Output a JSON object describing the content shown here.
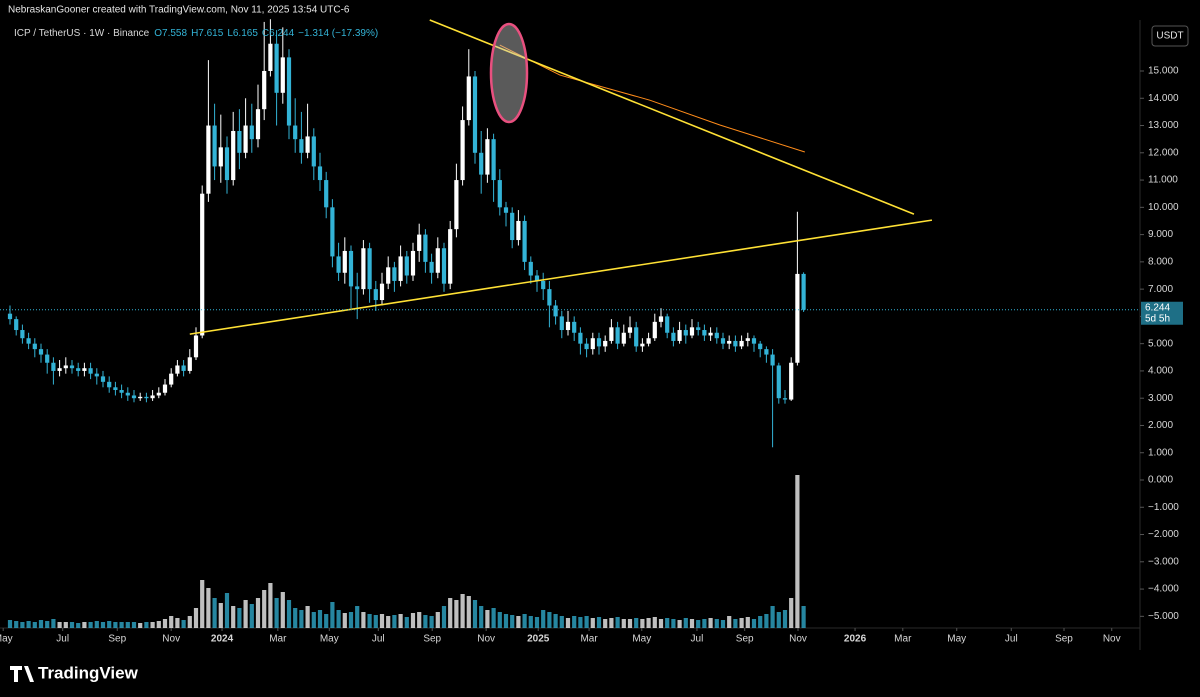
{
  "chart_data": {
    "type": "candlestick",
    "header": "NebraskanGooner created with TradingView.com, Nov 11, 2025 13:54 UTC-6",
    "symbol": "ICP / TetherUS · 1W · Binance",
    "legend_values": [
      "O7.558",
      "H7.615",
      "L6.165",
      "C6.244",
      "−1.314 (−17.39%)"
    ],
    "currency": "USDT",
    "last_price_label": "6.244",
    "countdown": "5d 5h",
    "brand": "TradingView",
    "up_color": "#ffffff",
    "down_color": "#33b3d6",
    "open": [
      6.1,
      5.9,
      5.5,
      5.2,
      5.0,
      4.8,
      4.6,
      4.3,
      4.0,
      4.1,
      4.2,
      4.1,
      4.0,
      4.1,
      3.9,
      3.8,
      3.6,
      3.4,
      3.3,
      3.2,
      3.1,
      3.0,
      3.05,
      3.0,
      3.1,
      3.2,
      3.5,
      3.9,
      4.2,
      4.0,
      4.5,
      5.3,
      10.5,
      13.0,
      11.5,
      12.2,
      11.0,
      12.8,
      12.0,
      13.0,
      12.5,
      13.6,
      15.0,
      16.0,
      14.2,
      15.5,
      13.0,
      12.5,
      12.0,
      12.6,
      11.5,
      11.0,
      10.0,
      8.2,
      7.6,
      8.4,
      7.1,
      7.0,
      8.5,
      7.0,
      6.6,
      7.2,
      7.8,
      7.3,
      8.2,
      7.5,
      8.4,
      9.0,
      8.0,
      7.6,
      8.5,
      7.2,
      9.2,
      11.0,
      13.2,
      14.8,
      12.0,
      11.2,
      12.5,
      11.0,
      10.0,
      9.8,
      8.8,
      9.5,
      8.0,
      7.5,
      7.3,
      7.0,
      6.4,
      6.0,
      5.5,
      5.8,
      5.4,
      5.0,
      4.8,
      5.2,
      4.9,
      5.1,
      5.6,
      5.0,
      5.4,
      5.6,
      4.9,
      5.0,
      5.2,
      5.8,
      6.0,
      5.4,
      5.1,
      5.5,
      5.3,
      5.6,
      5.5,
      5.3,
      5.4,
      5.2,
      5.0,
      5.1,
      4.9,
      5.1,
      5.2,
      5.0,
      4.8,
      4.6,
      4.2,
      3.0,
      2.95,
      4.3,
      7.558
    ],
    "high": [
      6.4,
      6.0,
      5.7,
      5.4,
      5.2,
      5.0,
      4.8,
      4.5,
      4.4,
      4.5,
      4.4,
      4.3,
      4.3,
      4.3,
      4.1,
      4.0,
      3.8,
      3.6,
      3.5,
      3.4,
      3.3,
      3.2,
      3.2,
      3.3,
      3.4,
      3.7,
      4.1,
      4.4,
      4.4,
      4.8,
      5.6,
      10.8,
      15.4,
      13.8,
      13.4,
      12.6,
      13.5,
      13.6,
      14.0,
      13.8,
      14.5,
      16.8,
      16.9,
      16.5,
      16.6,
      15.8,
      14.0,
      13.5,
      13.8,
      12.9,
      12.0,
      11.3,
      10.3,
      8.7,
      8.9,
      8.6,
      7.6,
      8.8,
      8.7,
      7.3,
      7.6,
      8.2,
      8.0,
      8.6,
      8.4,
      8.7,
      9.4,
      9.2,
      8.3,
      8.9,
      8.7,
      9.5,
      11.6,
      13.7,
      15.8,
      15.0,
      12.8,
      12.9,
      12.7,
      11.4,
      10.2,
      10.0,
      9.9,
      9.7,
      8.2,
      7.7,
      7.6,
      7.3,
      6.6,
      6.2,
      6.2,
      6.0,
      5.6,
      5.2,
      5.4,
      5.4,
      5.3,
      5.9,
      5.8,
      5.7,
      6.0,
      5.8,
      5.2,
      5.4,
      6.1,
      6.3,
      6.1,
      5.6,
      5.8,
      5.7,
      5.9,
      5.8,
      5.7,
      5.6,
      5.6,
      5.4,
      5.3,
      5.3,
      5.3,
      5.4,
      5.3,
      5.1,
      4.9,
      4.8,
      4.3,
      3.3,
      4.5,
      9.84,
      7.615
    ],
    "low": [
      5.7,
      5.3,
      5.0,
      4.8,
      4.5,
      4.3,
      3.9,
      3.5,
      3.8,
      3.9,
      3.9,
      3.8,
      3.8,
      3.7,
      3.5,
      3.4,
      3.2,
      3.1,
      3.0,
      2.9,
      2.85,
      2.9,
      2.85,
      2.9,
      3.0,
      3.1,
      3.4,
      3.8,
      3.8,
      3.9,
      4.4,
      5.2,
      10.2,
      11.0,
      10.9,
      10.5,
      10.8,
      11.4,
      11.8,
      12.0,
      12.2,
      13.2,
      14.8,
      13.0,
      13.8,
      12.5,
      12.0,
      11.6,
      11.8,
      11.0,
      10.6,
      9.6,
      7.8,
      7.3,
      7.2,
      6.3,
      5.9,
      6.8,
      6.5,
      6.2,
      6.4,
      7.0,
      6.9,
      7.1,
      7.2,
      7.3,
      8.0,
      7.6,
      7.2,
      7.4,
      6.9,
      7.0,
      8.9,
      10.8,
      13.0,
      11.6,
      10.5,
      10.9,
      10.2,
      9.7,
      9.3,
      8.5,
      8.6,
      7.7,
      7.2,
      6.9,
      6.6,
      5.6,
      5.7,
      5.2,
      5.3,
      5.1,
      4.6,
      4.5,
      4.6,
      4.6,
      4.7,
      5.0,
      4.8,
      4.9,
      5.2,
      4.7,
      4.7,
      4.9,
      5.1,
      5.6,
      5.2,
      4.9,
      5.0,
      5.0,
      5.2,
      5.3,
      5.1,
      5.1,
      5.0,
      4.8,
      4.8,
      4.7,
      4.8,
      4.9,
      4.7,
      4.5,
      4.3,
      1.2,
      2.8,
      2.8,
      2.9,
      4.2,
      6.165
    ],
    "close": [
      5.9,
      5.5,
      5.2,
      5.0,
      4.8,
      4.6,
      4.3,
      4.0,
      4.1,
      4.2,
      4.1,
      4.0,
      4.1,
      3.9,
      3.8,
      3.6,
      3.4,
      3.3,
      3.2,
      3.1,
      3.0,
      3.05,
      3.0,
      3.1,
      3.2,
      3.5,
      3.9,
      4.2,
      4.0,
      4.5,
      5.3,
      10.5,
      13.0,
      11.5,
      12.2,
      11.0,
      12.8,
      12.0,
      13.0,
      12.5,
      13.6,
      15.0,
      16.0,
      14.2,
      15.5,
      13.0,
      12.5,
      12.0,
      12.6,
      11.5,
      11.0,
      10.0,
      8.2,
      7.6,
      8.4,
      7.1,
      7.0,
      8.5,
      7.0,
      6.6,
      7.2,
      7.8,
      7.3,
      8.2,
      7.5,
      8.4,
      9.0,
      8.0,
      7.6,
      8.5,
      7.2,
      9.2,
      11.0,
      13.2,
      14.8,
      12.0,
      11.2,
      12.5,
      11.0,
      10.0,
      9.8,
      8.8,
      9.5,
      8.0,
      7.5,
      7.3,
      7.0,
      6.4,
      6.0,
      5.5,
      5.8,
      5.4,
      5.0,
      4.8,
      5.2,
      4.9,
      5.1,
      5.6,
      5.0,
      5.4,
      5.6,
      4.9,
      5.0,
      5.2,
      5.8,
      6.0,
      5.4,
      5.1,
      5.5,
      5.3,
      5.6,
      5.5,
      5.3,
      5.4,
      5.2,
      5.0,
      5.1,
      4.9,
      5.1,
      5.2,
      5.0,
      4.8,
      4.6,
      4.2,
      3.0,
      2.95,
      4.3,
      7.558,
      6.244
    ],
    "volume": [
      8,
      7,
      6,
      7,
      6,
      8,
      7,
      9,
      6,
      6,
      6,
      5,
      6,
      6,
      7,
      6,
      7,
      6,
      6,
      6,
      6,
      5,
      6,
      6,
      7,
      9,
      12,
      10,
      8,
      12,
      20,
      48,
      40,
      30,
      25,
      35,
      22,
      20,
      28,
      24,
      30,
      38,
      45,
      30,
      36,
      28,
      20,
      18,
      22,
      16,
      18,
      14,
      26,
      18,
      15,
      16,
      22,
      16,
      14,
      13,
      14,
      12,
      13,
      14,
      11,
      15,
      16,
      13,
      12,
      16,
      22,
      30,
      28,
      34,
      32,
      28,
      22,
      18,
      20,
      16,
      14,
      13,
      12,
      14,
      12,
      11,
      18,
      16,
      14,
      12,
      10,
      12,
      11,
      12,
      10,
      11,
      9,
      10,
      11,
      9,
      9,
      10,
      9,
      10,
      11,
      9,
      10,
      9,
      8,
      10,
      9,
      8,
      9,
      10,
      9,
      8,
      12,
      9,
      10,
      11,
      9,
      12,
      14,
      22,
      16,
      18,
      30,
      153,
      22
    ],
    "volume_lim": [
      0,
      160
    ],
    "lines": [
      {
        "color": "#ff8c1a",
        "x": [
          79,
          88.7,
          103.2,
          114.5,
          128.2
        ],
        "y": [
          15.95,
          14.85,
          13.93,
          13.02,
          12.03
        ]
      },
      {
        "color": "#ffe135",
        "x": [
          67.7,
          145.8
        ],
        "y": [
          16.87,
          9.75
        ]
      },
      {
        "color": "#ffe135",
        "x": [
          29,
          148.7
        ],
        "y": [
          5.35,
          9.53
        ]
      }
    ],
    "xlim": [
      -1.613,
      182.26
    ],
    "xticks": [
      {
        "value": -1.1,
        "label": "May"
      },
      {
        "value": 8.5,
        "label": "Jul"
      },
      {
        "value": 17.3,
        "label": "Sep"
      },
      {
        "value": 26,
        "label": "Nov"
      },
      {
        "value": 34.2,
        "label": "2024"
      },
      {
        "value": 43.2,
        "label": "Mar"
      },
      {
        "value": 51.5,
        "label": "May"
      },
      {
        "value": 59.4,
        "label": "Jul"
      },
      {
        "value": 68.1,
        "label": "Sep"
      },
      {
        "value": 76.8,
        "label": "Nov"
      },
      {
        "value": 85.2,
        "label": "2025"
      },
      {
        "value": 93.4,
        "label": "Mar"
      },
      {
        "value": 101.9,
        "label": "May"
      },
      {
        "value": 110.8,
        "label": "Jul"
      },
      {
        "value": 118.5,
        "label": "Sep"
      },
      {
        "value": 127.1,
        "label": "Nov"
      },
      {
        "value": 136.3,
        "label": "2026"
      },
      {
        "value": 144,
        "label": "Mar"
      },
      {
        "value": 152.7,
        "label": "May"
      },
      {
        "value": 161.5,
        "label": "Jul"
      },
      {
        "value": 170,
        "label": "Sep"
      },
      {
        "value": 177.7,
        "label": "Nov"
      }
    ],
    "ylim": [
      -5.428,
      16.797
    ],
    "yticks": [
      {
        "value": -5,
        "label": "−5.000"
      },
      {
        "value": -4,
        "label": "−4.000"
      },
      {
        "value": -3,
        "label": "−3.000"
      },
      {
        "value": -2,
        "label": "−2.000"
      },
      {
        "value": -1,
        "label": "−1.000"
      },
      {
        "value": 0,
        "label": "0.000"
      },
      {
        "value": 1,
        "label": "1.000"
      },
      {
        "value": 2,
        "label": "2.000"
      },
      {
        "value": 3,
        "label": "3.000"
      },
      {
        "value": 4,
        "label": "4.000"
      },
      {
        "value": 5,
        "label": "5.000"
      },
      {
        "value": 6,
        "label": "6.000"
      },
      {
        "value": 7,
        "label": "7.000"
      },
      {
        "value": 8,
        "label": "8.000"
      },
      {
        "value": 9,
        "label": "9.000"
      },
      {
        "value": 10,
        "label": "10.000"
      },
      {
        "value": 11,
        "label": "11.000"
      },
      {
        "value": 12,
        "label": "12.000"
      },
      {
        "value": 13,
        "label": "13.000"
      },
      {
        "value": 14,
        "label": "14.000"
      },
      {
        "value": 15,
        "label": "15.000"
      }
    ]
  }
}
